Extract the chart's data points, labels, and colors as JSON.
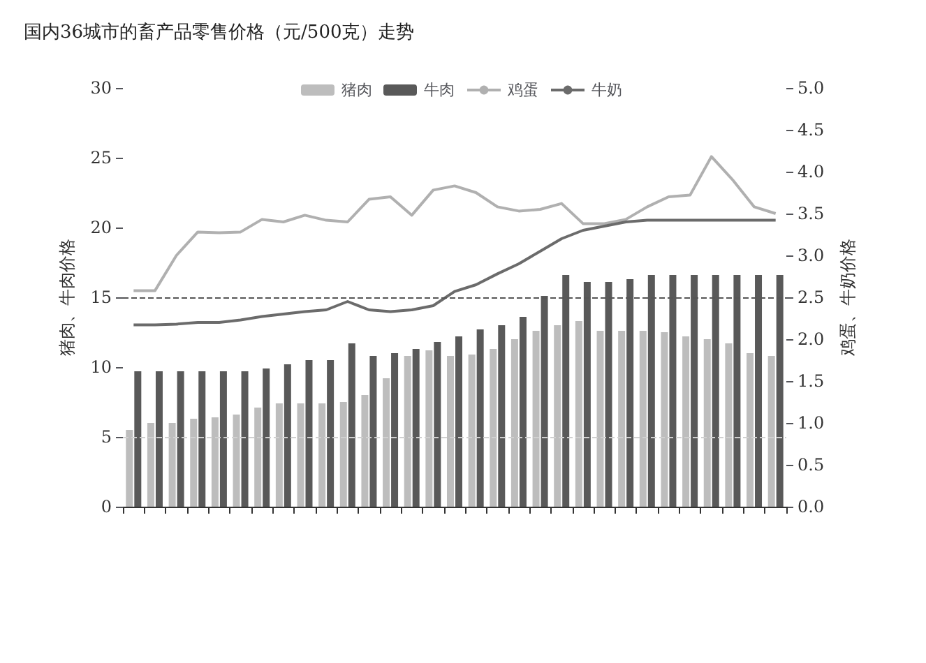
{
  "chart_data": {
    "type": "bar",
    "title": "国内36城市的畜产品零售价格（元/500克）走势",
    "ylabel": "猪肉、牛肉价格",
    "y2label": "鸡蛋、牛奶价格",
    "categories": [
      null,
      null,
      null,
      null,
      null,
      null,
      null,
      null,
      null,
      null,
      null,
      null,
      null,
      null,
      null,
      null,
      null,
      null,
      null,
      null,
      null,
      null,
      null,
      null,
      null,
      null,
      null,
      null,
      null,
      null,
      null
    ],
    "series": [
      {
        "name": "猪肉",
        "color": "#bdbdbd",
        "values": [
          5.5,
          6.0,
          6.0,
          6.3,
          6.4,
          6.6,
          7.1,
          7.4,
          7.4,
          7.4,
          7.5,
          8.0,
          9.2,
          10.8,
          11.2,
          10.8,
          10.9,
          11.3,
          12.0,
          12.6,
          13.0,
          13.3,
          12.6,
          12.6,
          12.6,
          12.5,
          12.2,
          12.0,
          11.7,
          11.0,
          10.8
        ]
      },
      {
        "name": "牛肉",
        "color": "#595959",
        "values": [
          9.7,
          9.7,
          9.7,
          9.7,
          9.7,
          9.7,
          9.9,
          10.2,
          10.5,
          10.5,
          11.7,
          10.8,
          11.0,
          11.3,
          11.8,
          12.2,
          12.7,
          13.0,
          13.6,
          15.1,
          16.6,
          16.1,
          16.1,
          16.3,
          16.6,
          16.6,
          16.6,
          16.6,
          16.6,
          16.6,
          16.6
        ]
      },
      {
        "name": "鸡蛋",
        "type": "line",
        "axis": "y2",
        "color": "#b0b0b0",
        "values": [
          2.58,
          2.58,
          3.0,
          3.28,
          3.27,
          3.28,
          3.43,
          3.4,
          3.48,
          3.42,
          3.4,
          3.67,
          3.7,
          3.48,
          3.78,
          3.83,
          3.75,
          3.58,
          3.53,
          3.55,
          3.62,
          3.38,
          3.38,
          3.43,
          3.58,
          3.7,
          3.72,
          4.18,
          3.9,
          3.58,
          3.5
        ]
      },
      {
        "name": "牛奶",
        "type": "line",
        "axis": "y2",
        "color": "#6b6b6b",
        "values": [
          2.17,
          2.17,
          2.18,
          2.2,
          2.2,
          2.23,
          2.27,
          2.3,
          2.33,
          2.35,
          2.45,
          2.35,
          2.33,
          2.35,
          2.4,
          2.57,
          2.65,
          2.78,
          2.9,
          3.05,
          3.2,
          3.3,
          3.35,
          3.4,
          3.42,
          3.42,
          3.42,
          3.42,
          3.42,
          3.42,
          3.42
        ]
      }
    ],
    "ylim": [
      0,
      30
    ],
    "yticks": [
      0,
      5,
      10,
      15,
      20,
      25,
      30
    ],
    "y2lim": [
      0,
      5
    ],
    "y2ticks": [
      {
        "value": 0,
        "label": "0.0"
      },
      {
        "value": 0.5,
        "label": "0.5"
      },
      {
        "value": 1,
        "label": "1.0"
      },
      {
        "value": 1.5,
        "label": "1.5"
      },
      {
        "value": 2,
        "label": "2.0"
      },
      {
        "value": 2.5,
        "label": "2.5"
      },
      {
        "value": 3,
        "label": "3.0"
      },
      {
        "value": 3.5,
        "label": "3.5"
      },
      {
        "value": 4,
        "label": "4.0"
      },
      {
        "value": 4.5,
        "label": "4.5"
      },
      {
        "value": 5,
        "label": "5.0"
      }
    ],
    "ref_lines": [
      {
        "axis": "y",
        "value": 15,
        "color": "#555555",
        "line_style": "dashed"
      },
      {
        "axis": "y",
        "value": 5,
        "color": "#d0d0d0",
        "line_style": "dashed"
      }
    ],
    "legend": "top",
    "marker": "none",
    "grid": false
  }
}
